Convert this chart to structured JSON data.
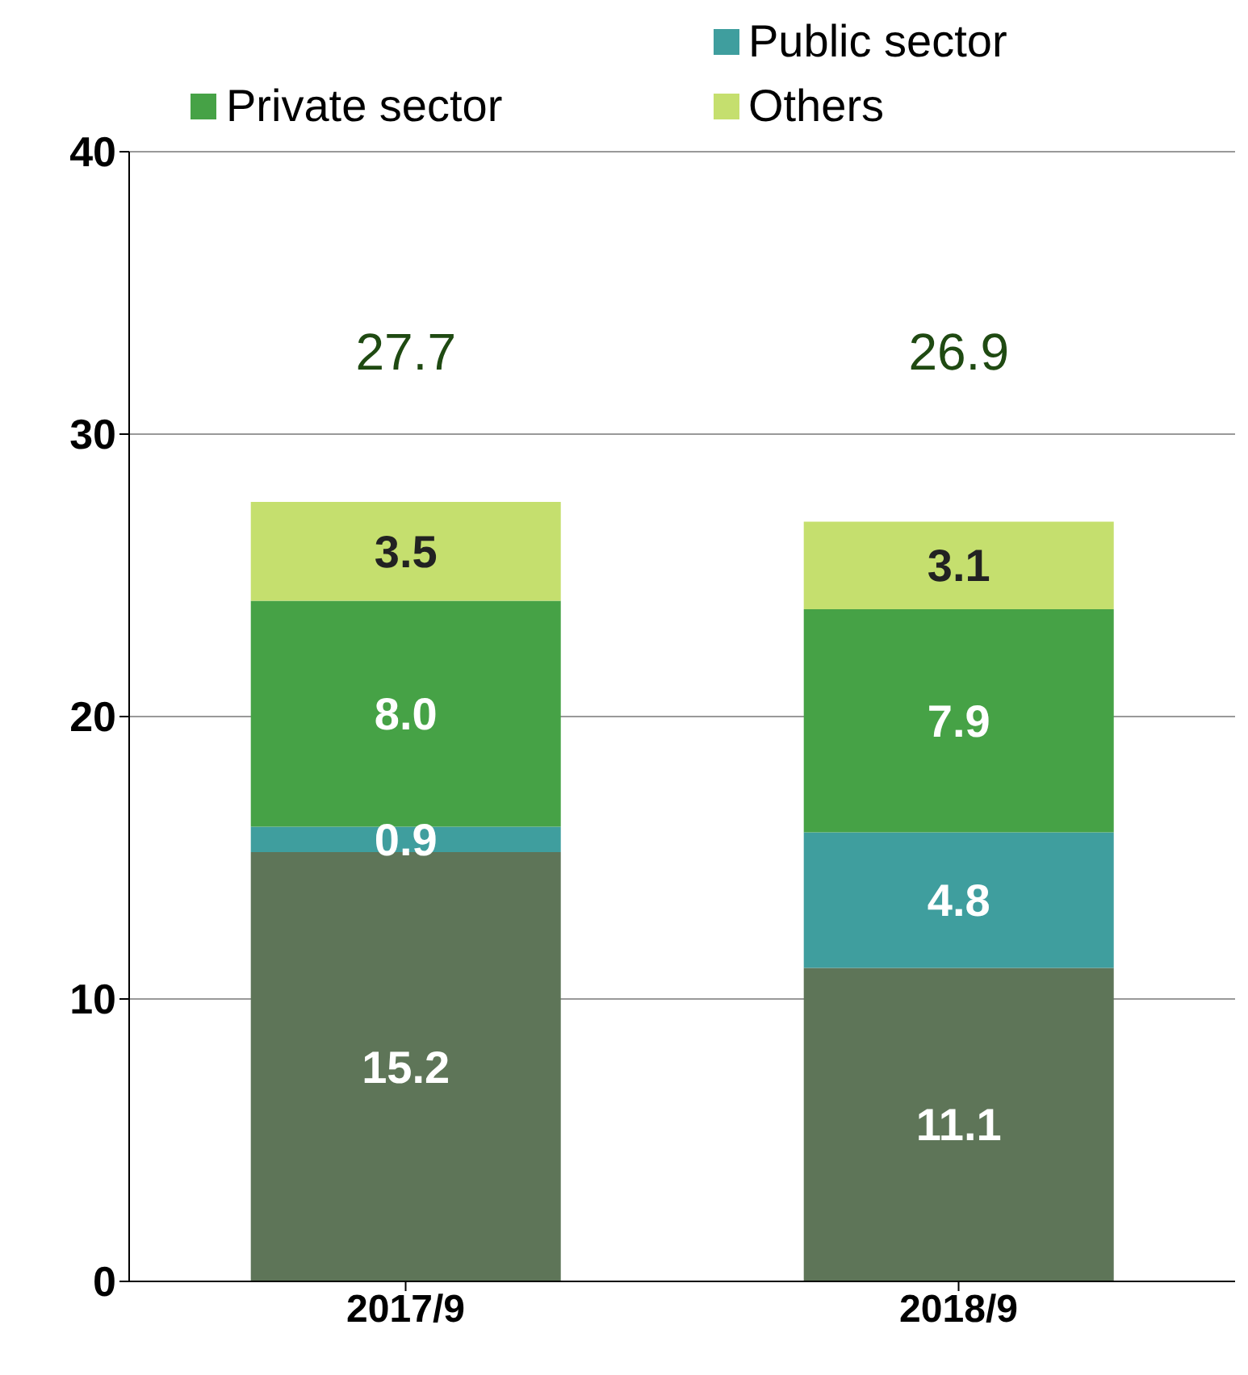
{
  "chart_data": {
    "type": "bar",
    "stacked": true,
    "categories": [
      "2017/9",
      "2018/9"
    ],
    "series": [
      {
        "color": "#5e7558",
        "values": [
          15.2,
          11.1
        ],
        "value_labels": [
          "15.2",
          "11.1"
        ]
      },
      {
        "name": "Public sector",
        "color": "#3f9e9e",
        "values": [
          0.9,
          4.8
        ],
        "value_labels": [
          "0.9",
          "4.8"
        ]
      },
      {
        "name": "Private sector",
        "color": "#46a246",
        "values": [
          8.0,
          7.9
        ],
        "value_labels": [
          "8.0",
          "7.9"
        ]
      },
      {
        "name": "Others",
        "color": "#c5df6e",
        "values": [
          3.5,
          3.1
        ],
        "value_labels": [
          "3.5",
          "3.1"
        ]
      }
    ],
    "totals": [
      "27.7",
      "26.9"
    ],
    "ylim": [
      0,
      40
    ],
    "yticks": [
      0,
      10,
      20,
      30,
      40
    ],
    "grid": "y",
    "legend": "top"
  }
}
